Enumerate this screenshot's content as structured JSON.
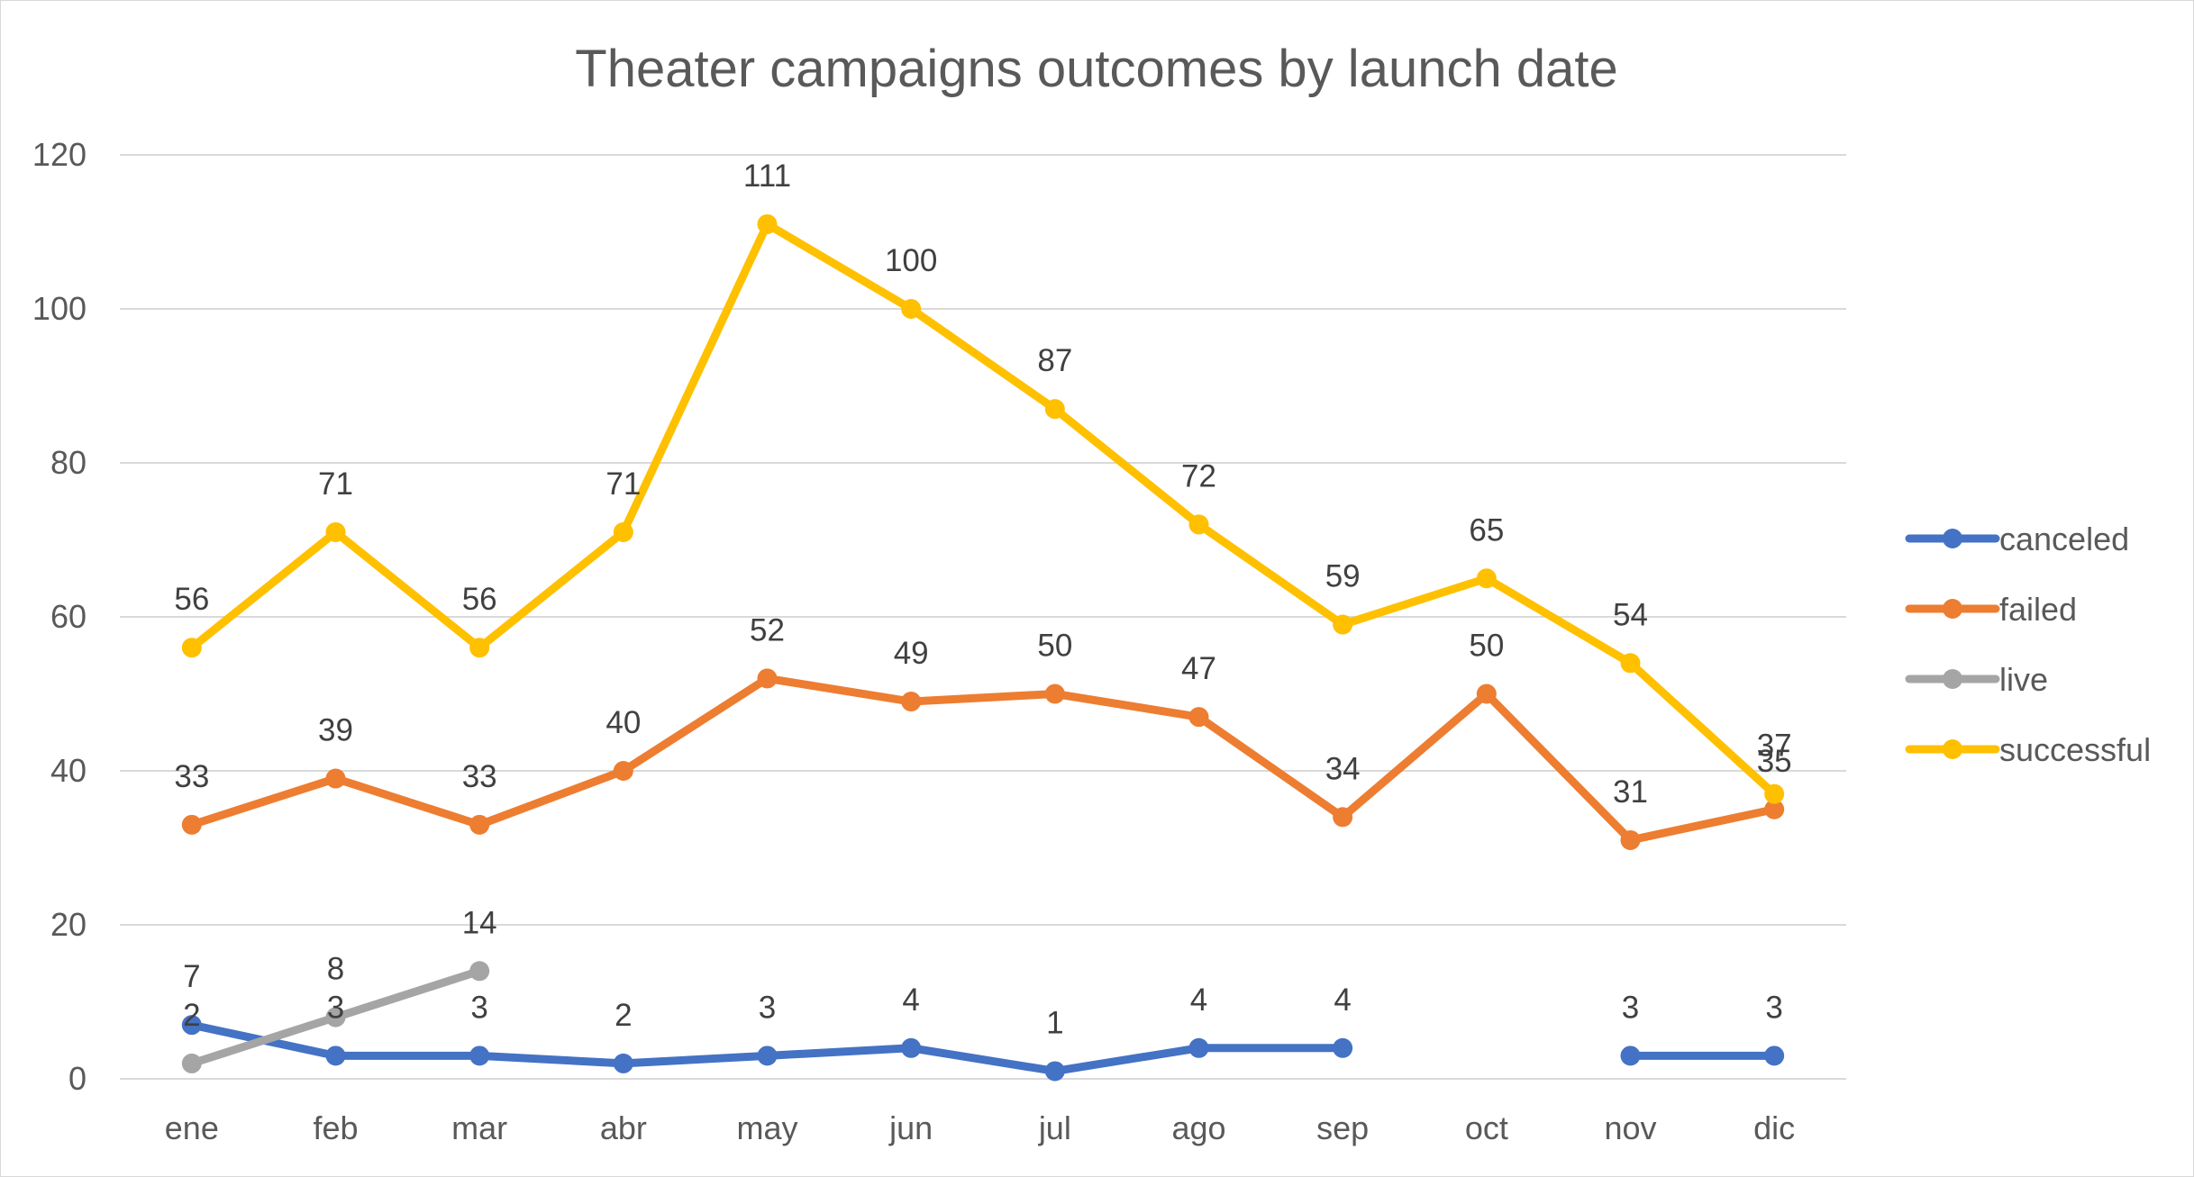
{
  "chart_data": {
    "type": "line",
    "title": "Theater campaigns outcomes by launch date",
    "xlabel": "",
    "ylabel": "",
    "categories": [
      "ene",
      "feb",
      "mar",
      "abr",
      "may",
      "jun",
      "jul",
      "ago",
      "sep",
      "oct",
      "nov",
      "dic"
    ],
    "ylim": [
      0,
      120
    ],
    "yticks": [
      "0",
      "20",
      "40",
      "60",
      "80",
      "100",
      "120"
    ],
    "grid": true,
    "legend_position": "right",
    "data_labels": true,
    "series": [
      {
        "name": "canceled",
        "color": "#4472C4",
        "values": [
          7,
          3,
          3,
          2,
          3,
          4,
          1,
          4,
          4,
          null,
          3,
          3
        ]
      },
      {
        "name": "failed",
        "color": "#ED7D31",
        "values": [
          33,
          39,
          33,
          40,
          52,
          49,
          50,
          47,
          34,
          50,
          31,
          35
        ]
      },
      {
        "name": "live",
        "color": "#A5A5A5",
        "values": [
          2,
          8,
          14,
          null,
          null,
          null,
          null,
          null,
          null,
          null,
          null,
          null
        ]
      },
      {
        "name": "successful",
        "color": "#FFC000",
        "values": [
          56,
          71,
          56,
          71,
          111,
          100,
          87,
          72,
          59,
          65,
          54,
          37
        ]
      }
    ]
  }
}
